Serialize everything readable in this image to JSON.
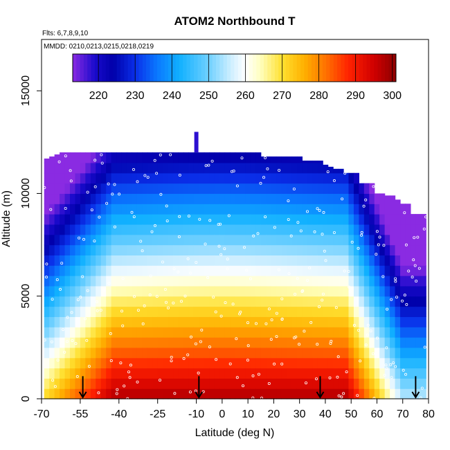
{
  "chart_data": {
    "type": "heatmap",
    "title": "ATOM2 Northbound T",
    "annotations": {
      "flights": "Flts: 6,7,8,9,10",
      "dates": "MMDD: 0210,0213,0215,0218,0219"
    },
    "xlabel": "Latitude (deg N)",
    "ylabel": "Altitude (m)",
    "xlim": [
      -70,
      80
    ],
    "ylim": [
      0,
      17500
    ],
    "x_ticks": [
      -70,
      -55,
      -40,
      -25,
      -10,
      0,
      10,
      20,
      30,
      40,
      50,
      60,
      70,
      80
    ],
    "x_tick_labels": [
      "-70",
      "-55",
      "-40",
      "-25",
      "-10",
      "0",
      "10",
      "20",
      "30",
      "40",
      "50",
      "60",
      "70",
      "80"
    ],
    "y_ticks": [
      0,
      5000,
      10000,
      15000
    ],
    "y_tick_labels": [
      "0",
      "5000",
      "10000",
      "15000"
    ],
    "colorbar": {
      "min": 213,
      "max": 301,
      "ticks": [
        220,
        230,
        240,
        250,
        260,
        270,
        280,
        290,
        300
      ],
      "tick_labels": [
        "220",
        "230",
        "240",
        "250",
        "260",
        "270",
        "280",
        "290",
        "300"
      ],
      "placement": "top, inside plot",
      "stops": [
        {
          "value": 213,
          "color": "#8a2be2"
        },
        {
          "value": 219,
          "color": "#1a0acc"
        },
        {
          "value": 224,
          "color": "#0000aa"
        },
        {
          "value": 230,
          "color": "#0a2ee8"
        },
        {
          "value": 236,
          "color": "#0a78ff"
        },
        {
          "value": 242,
          "color": "#10b0ff"
        },
        {
          "value": 250,
          "color": "#6fd0ff"
        },
        {
          "value": 256,
          "color": "#cdeeff"
        },
        {
          "value": 260,
          "color": "#ffffff"
        },
        {
          "value": 264,
          "color": "#ffffc0"
        },
        {
          "value": 270,
          "color": "#ffe030"
        },
        {
          "value": 276,
          "color": "#ffb000"
        },
        {
          "value": 282,
          "color": "#ff7000"
        },
        {
          "value": 288,
          "color": "#ff2200"
        },
        {
          "value": 295,
          "color": "#d00000"
        },
        {
          "value": 301,
          "color": "#8b0000"
        }
      ]
    },
    "latitude_bins": [
      -68,
      -66,
      -64,
      -62,
      -60,
      -58,
      -56,
      -54,
      -52,
      -50,
      -48,
      -46,
      -44,
      -42,
      -40,
      -38,
      -36,
      -34,
      -32,
      -30,
      -28,
      -26,
      -24,
      -22,
      -20,
      -18,
      -16,
      -14,
      -12,
      -10,
      -8,
      -6,
      -4,
      -2,
      0,
      2,
      4,
      6,
      8,
      10,
      12,
      14,
      16,
      18,
      20,
      22,
      24,
      26,
      28,
      30,
      32,
      34,
      36,
      38,
      40,
      42,
      44,
      46,
      48,
      50,
      52,
      54,
      56,
      58,
      60,
      62,
      64,
      66,
      68,
      70,
      72,
      74,
      76,
      78
    ],
    "top_altitude": [
      11700,
      11800,
      11900,
      12000,
      12000,
      12000,
      12000,
      12000,
      12000,
      12000,
      12000,
      12000,
      12000,
      12000,
      12000,
      12000,
      12000,
      12000,
      12000,
      12000,
      12000,
      12000,
      12000,
      12000,
      12000,
      12000,
      12000,
      12000,
      12000,
      12000,
      12000,
      12000,
      12000,
      12000,
      12000,
      12000,
      12000,
      12000,
      12000,
      12000,
      12000,
      12000,
      11800,
      11800,
      11800,
      11800,
      11800,
      11800,
      11800,
      11800,
      11600,
      11600,
      11600,
      11600,
      11400,
      11300,
      11200,
      11200,
      11000,
      11000,
      11000,
      10500,
      10500,
      10500,
      10000,
      10000,
      9900,
      9900,
      9700,
      9500,
      9500,
      9000,
      9000,
      9000
    ],
    "extra_peak": {
      "x": -10,
      "top": 13000
    },
    "temperature_model": {
      "surface_tropics": 298,
      "surface_pole_south": 272,
      "surface_pole_north": 255,
      "lapse_rate_K_per_km": 6.5,
      "tropopause_min": 212
    },
    "arrows_at_latitude": [
      -54,
      -9,
      38,
      75
    ]
  }
}
